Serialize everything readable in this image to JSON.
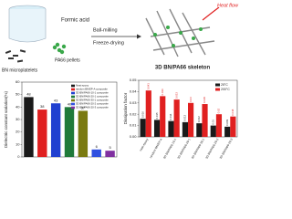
{
  "diagram": {
    "labels": {
      "formic_acid": "Formic acid",
      "bn": "BN microplatelets",
      "pa66": "PA66 pellets",
      "ball_milling": "Ball-milling",
      "freeze_drying": "Freeze-drying",
      "heat_flow": "Heat flow",
      "skeleton": "3D BN/PA66 skeleton"
    }
  },
  "chart_data": [
    {
      "type": "bar",
      "ylabel": "Dielectric constant variation(%)",
      "categories": [
        "Neat epoxy",
        "random BN/EP-A composite",
        "3D BN/PA66-10-1 composite",
        "3D BN/PA66-20-1 composite",
        "3D BN/PA66-30-1 composite",
        "3D BN/PA66-20-2 composite",
        "3D BN/PA66-20-3 composite"
      ],
      "values": [
        48,
        38,
        43,
        40,
        37,
        6,
        5
      ],
      "colors": [
        "#1a1a1a",
        "#e02020",
        "#2040d0",
        "#1f7a3a",
        "#7a7a10",
        "#3050e0",
        "#8030a0"
      ],
      "ylim": [
        0,
        60
      ],
      "yticks": [
        0,
        10,
        20,
        30,
        40,
        50,
        60
      ],
      "legend": "upper right"
    },
    {
      "type": "grouped_bar",
      "ylabel": "Dissipation factor",
      "categories": [
        "neat epoxy",
        "random BN/EP-A",
        "3D BN/PA66-10-1",
        "3D BN/PA66-20-1",
        "3D BN/PA66-30-1",
        "3D BN/PA66-20-2",
        "3D BN/PA66-20-3"
      ],
      "series": [
        {
          "name": "25°C",
          "color": "#1a1a1a",
          "values": [
            0.016,
            0.015,
            0.014,
            0.013,
            0.012,
            0.01,
            0.009
          ]
        },
        {
          "name": "200°C",
          "color": "#e02020",
          "values": [
            0.041,
            0.036,
            0.033,
            0.03,
            0.029,
            0.02,
            0.018
          ]
        }
      ],
      "ylim": [
        0,
        0.05
      ],
      "yticks": [
        {
          "value": 0,
          "label": "0.00"
        },
        {
          "value": 0.01,
          "label": "0.01"
        },
        {
          "value": 0.02,
          "label": "0.02"
        },
        {
          "value": 0.03,
          "label": "0.03"
        },
        {
          "value": 0.04,
          "label": "0.04"
        },
        {
          "value": 0.05,
          "label": "0.05"
        }
      ],
      "legend": "upper right"
    }
  ]
}
